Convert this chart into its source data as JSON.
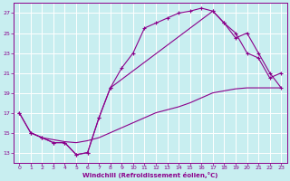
{
  "xlabel": "Windchill (Refroidissement éolien,°C)",
  "bg_color": "#c8eef0",
  "grid_color": "#ffffff",
  "line_color": "#8b008b",
  "xlim": [
    -0.5,
    23.5
  ],
  "ylim": [
    12.0,
    28.0
  ],
  "xticks": [
    0,
    1,
    2,
    3,
    4,
    5,
    6,
    7,
    8,
    9,
    10,
    11,
    12,
    13,
    14,
    15,
    16,
    17,
    18,
    19,
    20,
    21,
    22,
    23
  ],
  "yticks": [
    13,
    15,
    17,
    19,
    21,
    23,
    25,
    27
  ],
  "curve1_x": [
    0,
    1,
    2,
    3,
    4,
    5,
    6,
    7,
    8,
    9,
    10,
    11,
    12,
    13,
    14,
    15,
    16,
    17,
    18,
    19,
    20,
    21,
    22,
    23
  ],
  "curve1_y": [
    17.0,
    15.0,
    14.5,
    14.0,
    14.0,
    12.8,
    13.0,
    16.5,
    19.5,
    21.5,
    23.0,
    25.5,
    26.0,
    26.5,
    27.0,
    27.2,
    27.5,
    27.2,
    26.0,
    25.0,
    23.0,
    22.5,
    20.5,
    21.0
  ],
  "curve2_x": [
    0,
    1,
    2,
    3,
    4,
    5,
    6,
    7,
    8,
    17,
    18,
    19,
    20,
    21,
    22,
    23
  ],
  "curve2_y": [
    17.0,
    15.0,
    14.5,
    14.0,
    14.0,
    12.8,
    13.0,
    16.5,
    19.5,
    27.2,
    26.0,
    24.5,
    25.0,
    23.0,
    21.0,
    19.5
  ],
  "curve3_x": [
    1,
    2,
    3,
    4,
    5,
    6,
    7,
    8,
    9,
    10,
    11,
    12,
    13,
    14,
    15,
    16,
    17,
    18,
    19,
    20,
    21,
    22,
    23
  ],
  "curve3_y": [
    15.0,
    14.5,
    14.3,
    14.1,
    14.0,
    14.2,
    14.5,
    15.0,
    15.5,
    16.0,
    16.5,
    17.0,
    17.3,
    17.6,
    18.0,
    18.5,
    19.0,
    19.2,
    19.4,
    19.5,
    19.5,
    19.5,
    19.5
  ]
}
